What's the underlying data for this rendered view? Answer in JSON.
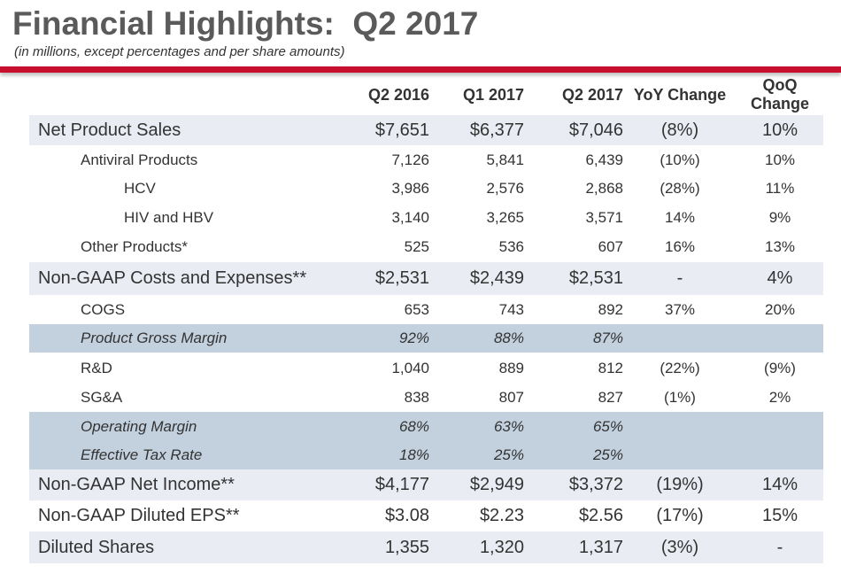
{
  "header": {
    "title": "Financial Highlights:  Q2 2017",
    "subtitle": "(in millions, except percentages and per share amounts)"
  },
  "table": {
    "columns": [
      "Q2 2016",
      "Q1 2017",
      "Q2 2017",
      "YoY Change",
      "QoQ Change"
    ],
    "rows": [
      {
        "label": "Net Product Sales",
        "cells": [
          "$7,651",
          "$6,377",
          "$7,046",
          "(8%)",
          "10%"
        ]
      },
      {
        "label": "Antiviral Products",
        "cells": [
          "7,126",
          "5,841",
          "6,439",
          "(10%)",
          "10%"
        ]
      },
      {
        "label": "HCV",
        "cells": [
          "3,986",
          "2,576",
          "2,868",
          "(28%)",
          "11%"
        ]
      },
      {
        "label": "HIV and HBV",
        "cells": [
          "3,140",
          "3,265",
          "3,571",
          "14%",
          "9%"
        ]
      },
      {
        "label": "Other Products*",
        "cells": [
          "525",
          "536",
          "607",
          "16%",
          "13%"
        ]
      },
      {
        "label": "Non-GAAP Costs and Expenses**",
        "cells": [
          "$2,531",
          "$2,439",
          "$2,531",
          "-",
          "4%"
        ]
      },
      {
        "label": "COGS",
        "cells": [
          "653",
          "743",
          "892",
          "37%",
          "20%"
        ]
      },
      {
        "label": "Product Gross Margin",
        "cells": [
          "92%",
          "88%",
          "87%"
        ]
      },
      {
        "label": "R&D",
        "cells": [
          "1,040",
          "889",
          "812",
          "(22%)",
          "(9%)"
        ]
      },
      {
        "label": "SG&A",
        "cells": [
          "838",
          "807",
          "827",
          "(1%)",
          "2%"
        ]
      },
      {
        "label": "Operating Margin",
        "cells": [
          "68%",
          "63%",
          "65%"
        ]
      },
      {
        "label": "Effective Tax Rate",
        "cells": [
          "18%",
          "25%",
          "25%"
        ]
      },
      {
        "label": "Non-GAAP Net Income**",
        "cells": [
          "$4,177",
          "$2,949",
          "$3,372",
          "(19%)",
          "14%"
        ]
      },
      {
        "label": "Non-GAAP Diluted EPS**",
        "cells": [
          "$3.08",
          "$2.23",
          "$2.56",
          "(17%)",
          "15%"
        ]
      },
      {
        "label": "Diluted Shares",
        "cells": [
          "1,355",
          "1,320",
          "1,317",
          "(3%)",
          "-"
        ]
      }
    ]
  }
}
